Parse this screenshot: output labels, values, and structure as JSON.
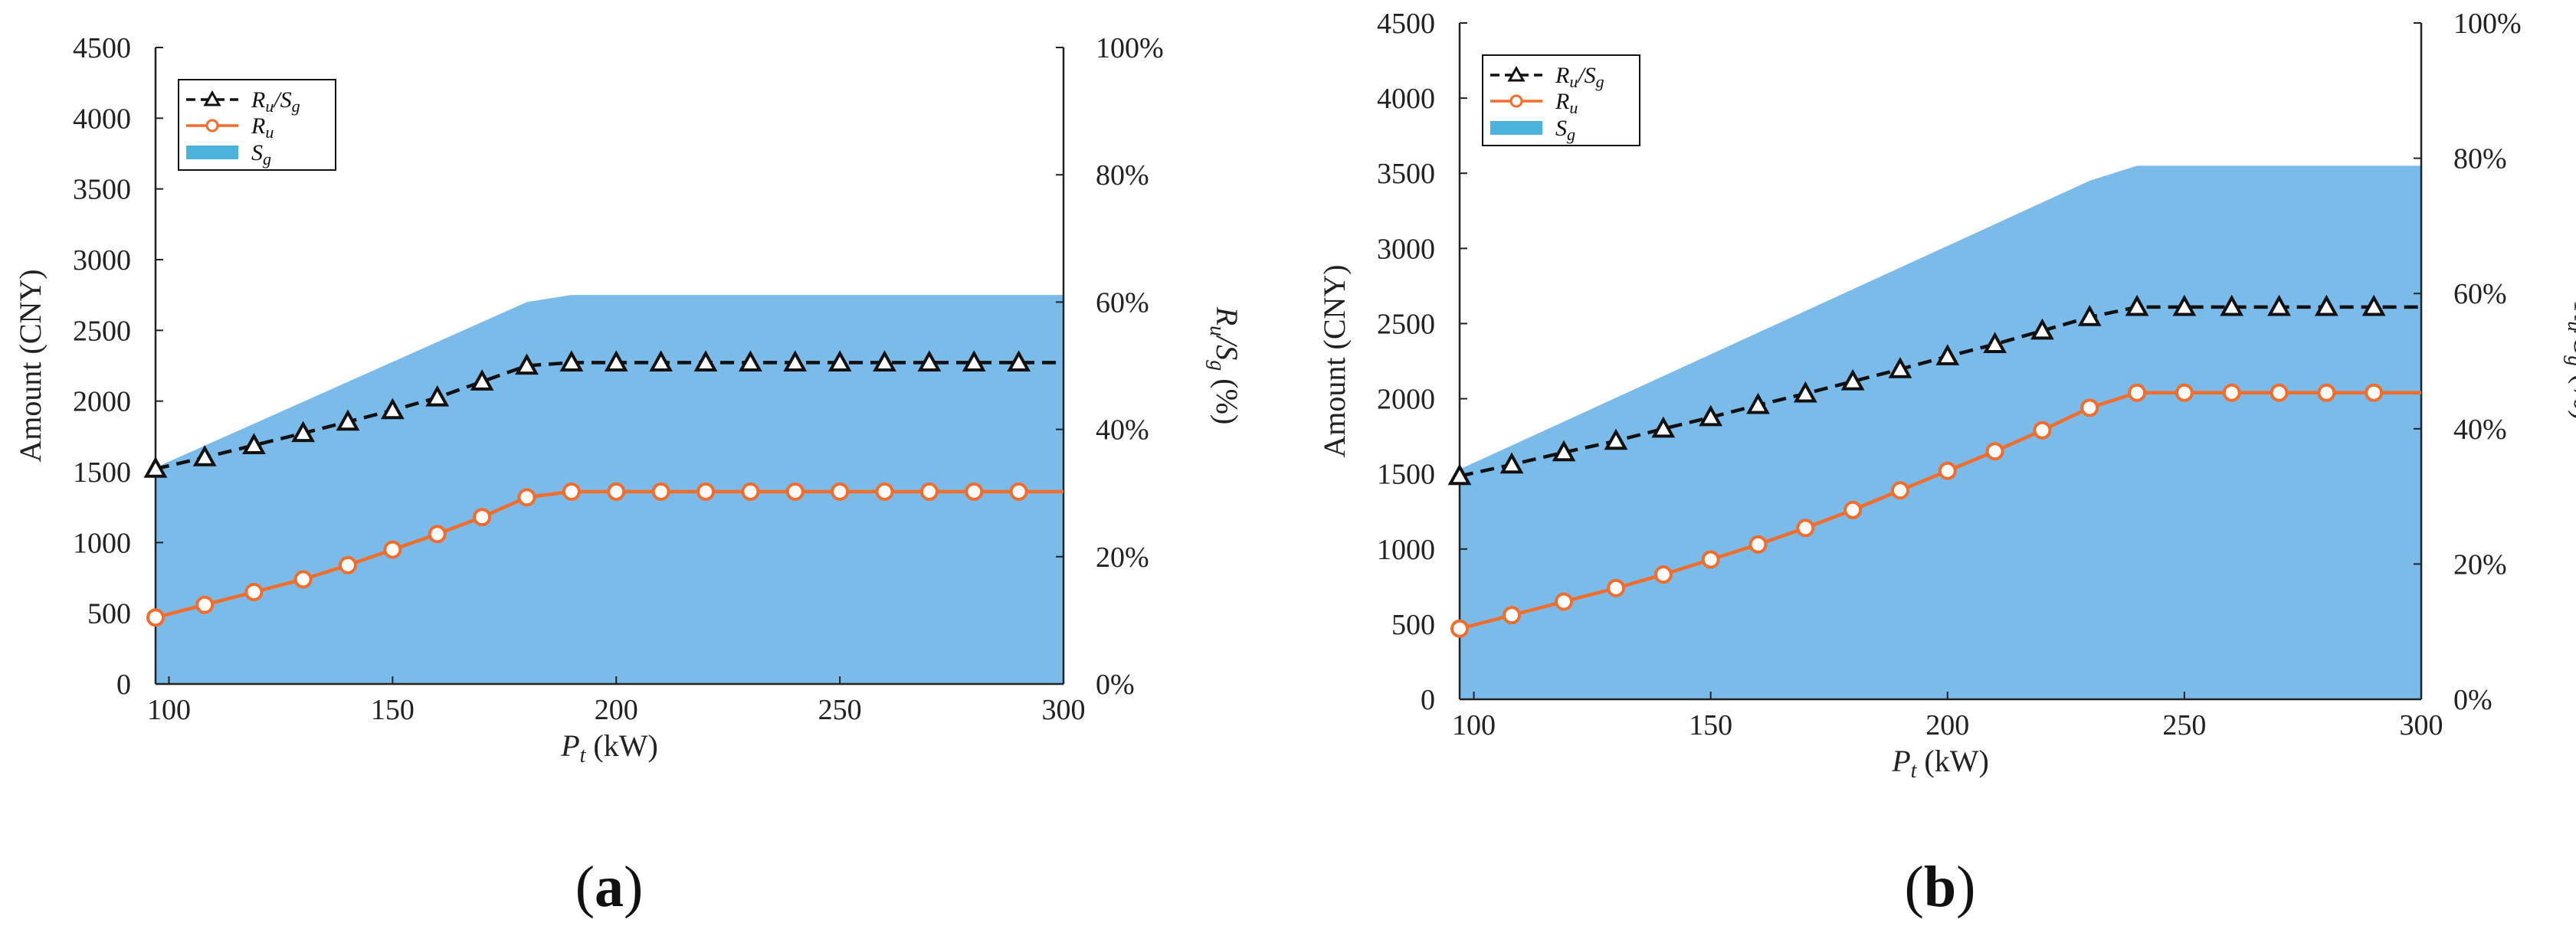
{
  "chart_data": [
    {
      "type": "line",
      "panel_label": "a",
      "xlabel": "P_t (kW)",
      "xlabel_main": "P",
      "xlabel_sub": "t",
      "xlabel_unit": " (kW)",
      "ylabel": "Amount (CNY)",
      "y2label_main": "R",
      "y2label_sub1": "u",
      "y2label_sep": "/S",
      "y2label_sub2": "g",
      "y2label_unit": "  (%)",
      "xlim": [
        97,
        300
      ],
      "ylim": [
        0,
        4500
      ],
      "y2lim": [
        0,
        100
      ],
      "xticks": [
        100,
        150,
        200,
        250,
        300
      ],
      "yticks": [
        0,
        500,
        1000,
        1500,
        2000,
        2500,
        3000,
        3500,
        4000,
        4500
      ],
      "y2ticks": [
        "0%",
        "20%",
        "40%",
        "60%",
        "80%",
        "100%"
      ],
      "legend": {
        "position": "top-left",
        "entries": [
          {
            "main": "R",
            "sub": "u",
            "sep": "/S",
            "sub2": "g"
          },
          {
            "main": "R",
            "sub": "u",
            "sep": "",
            "sub2": ""
          },
          {
            "main": "S",
            "sub": "g",
            "sep": "",
            "sub2": ""
          }
        ]
      },
      "series": [
        {
          "name": "S_g",
          "kind": "area",
          "axis": "left",
          "x": [
            97,
            180,
            190,
            300
          ],
          "values": [
            1530,
            2700,
            2750,
            2750
          ]
        },
        {
          "name": "R_u/S_g",
          "kind": "line-triangle",
          "axis": "right",
          "x": [
            97,
            108,
            119,
            130,
            140,
            150,
            160,
            170,
            180,
            190,
            200,
            210,
            220,
            230,
            240,
            250,
            260,
            270,
            280,
            290
          ],
          "values": [
            33.8,
            35.6,
            37.5,
            39.4,
            41.2,
            43.0,
            45.0,
            47.5,
            50.0,
            50.5,
            50.5,
            50.5,
            50.5,
            50.5,
            50.5,
            50.5,
            50.5,
            50.5,
            50.5,
            50.5
          ],
          "tail_to": 300
        },
        {
          "name": "R_u",
          "kind": "line-circle",
          "axis": "left",
          "x": [
            97,
            108,
            119,
            130,
            140,
            150,
            160,
            170,
            180,
            190,
            200,
            210,
            220,
            230,
            240,
            250,
            260,
            270,
            280,
            290
          ],
          "values": [
            470,
            560,
            650,
            740,
            840,
            950,
            1060,
            1180,
            1320,
            1360,
            1360,
            1360,
            1360,
            1360,
            1360,
            1360,
            1360,
            1360,
            1360,
            1360
          ],
          "tail_to": 300
        }
      ]
    },
    {
      "type": "line",
      "panel_label": "b",
      "xlabel": "P_t (kW)",
      "xlabel_main": "P",
      "xlabel_sub": "t",
      "xlabel_unit": " (kW)",
      "ylabel": "Amount (CNY)",
      "y2label_main": "R",
      "y2label_sub1": "u",
      "y2label_sep": "/S",
      "y2label_sub2": "g",
      "y2label_unit": "  (%)",
      "xlim": [
        97,
        300
      ],
      "ylim": [
        0,
        4500
      ],
      "y2lim": [
        0,
        100
      ],
      "xticks": [
        100,
        150,
        200,
        250,
        300
      ],
      "yticks": [
        0,
        500,
        1000,
        1500,
        2000,
        2500,
        3000,
        3500,
        4000,
        4500
      ],
      "y2ticks": [
        "0%",
        "20%",
        "40%",
        "60%",
        "80%",
        "100%"
      ],
      "legend": {
        "position": "top-left",
        "entries": [
          {
            "main": "R",
            "sub": "u",
            "sep": "/S",
            "sub2": "g"
          },
          {
            "main": "R",
            "sub": "u",
            "sep": "",
            "sub2": ""
          },
          {
            "main": "S",
            "sub": "g",
            "sep": "",
            "sub2": ""
          }
        ]
      },
      "series": [
        {
          "name": "S_g",
          "kind": "area",
          "axis": "left",
          "x": [
            97,
            230,
            240,
            300
          ],
          "values": [
            1530,
            3450,
            3550,
            3550
          ]
        },
        {
          "name": "R_u/S_g",
          "kind": "line-triangle",
          "axis": "right",
          "x": [
            97,
            108,
            119,
            130,
            140,
            150,
            160,
            170,
            180,
            190,
            200,
            210,
            220,
            230,
            240,
            250,
            260,
            270,
            280,
            290
          ],
          "values": [
            33.0,
            34.7,
            36.5,
            38.2,
            40.0,
            41.7,
            43.5,
            45.2,
            47.0,
            48.8,
            50.7,
            52.5,
            54.5,
            56.5,
            58.0,
            58.0,
            58.0,
            58.0,
            58.0,
            58.0
          ],
          "tail_to": 300
        },
        {
          "name": "R_u",
          "kind": "line-circle",
          "axis": "left",
          "x": [
            97,
            108,
            119,
            130,
            140,
            150,
            160,
            170,
            180,
            190,
            200,
            210,
            220,
            230,
            240,
            250,
            260,
            270,
            280,
            290
          ],
          "values": [
            470,
            560,
            650,
            740,
            830,
            930,
            1030,
            1140,
            1260,
            1390,
            1520,
            1650,
            1790,
            1940,
            2040,
            2040,
            2040,
            2040,
            2040,
            2040
          ],
          "tail_to": 300
        }
      ]
    }
  ],
  "colors": {
    "area_fill": "#7abbea",
    "legend_area_swatch": "#4ab4dc",
    "ru_line": "#f26d2b",
    "ratio_line": "#111111",
    "axis": "#222222"
  }
}
